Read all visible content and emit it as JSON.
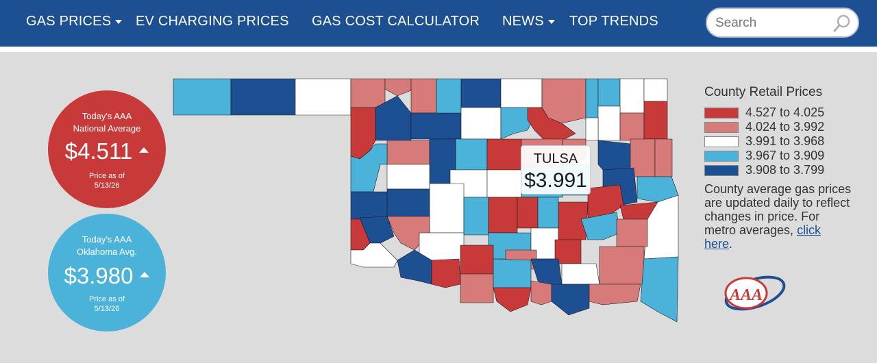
{
  "nav": {
    "items": [
      {
        "label": "GAS PRICES",
        "dropdown": true
      },
      {
        "label": "EV CHARGING PRICES",
        "dropdown": false
      },
      {
        "label": "GAS COST CALCULATOR",
        "dropdown": false
      },
      {
        "label": "NEWS",
        "dropdown": true
      },
      {
        "label": "TOP TRENDS",
        "dropdown": false
      }
    ],
    "search_placeholder": "Search",
    "search_icon": "search-icon"
  },
  "national": {
    "title_line1": "Today's AAA",
    "title_line2": "National Average",
    "price": "$4.511",
    "trend": "up",
    "asof_line1": "Price as of",
    "asof_line2": "5/13/26"
  },
  "state": {
    "title_line1": "Today's AAA",
    "title_line2": "Oklahoma Avg.",
    "price": "$3.980",
    "trend": "up",
    "asof_line1": "Price as of",
    "asof_line2": "5/13/26"
  },
  "tooltip": {
    "county": "TULSA",
    "price": "$3.991"
  },
  "legend": {
    "title": "County Retail Prices",
    "ranges": [
      {
        "label": "4.527 to 4.025",
        "color": "#c8393a"
      },
      {
        "label": "4.024 to 3.992",
        "color": "#d67b7a"
      },
      {
        "label": "3.991 to 3.968",
        "color": "#ffffff"
      },
      {
        "label": "3.967 to 3.909",
        "color": "#4bb3d9"
      },
      {
        "label": "3.908 to 3.799",
        "color": "#1d4f93"
      }
    ]
  },
  "note": {
    "text": "County average gas prices are updated daily to reflect changes in price. For metro averages, ",
    "link": "click here",
    "end": "."
  },
  "colors": {
    "nav_bg": "#1d4f93",
    "national_circle": "#c8393a",
    "state_circle": "#4bb3d9",
    "page_bg": "#dcdcdc"
  }
}
